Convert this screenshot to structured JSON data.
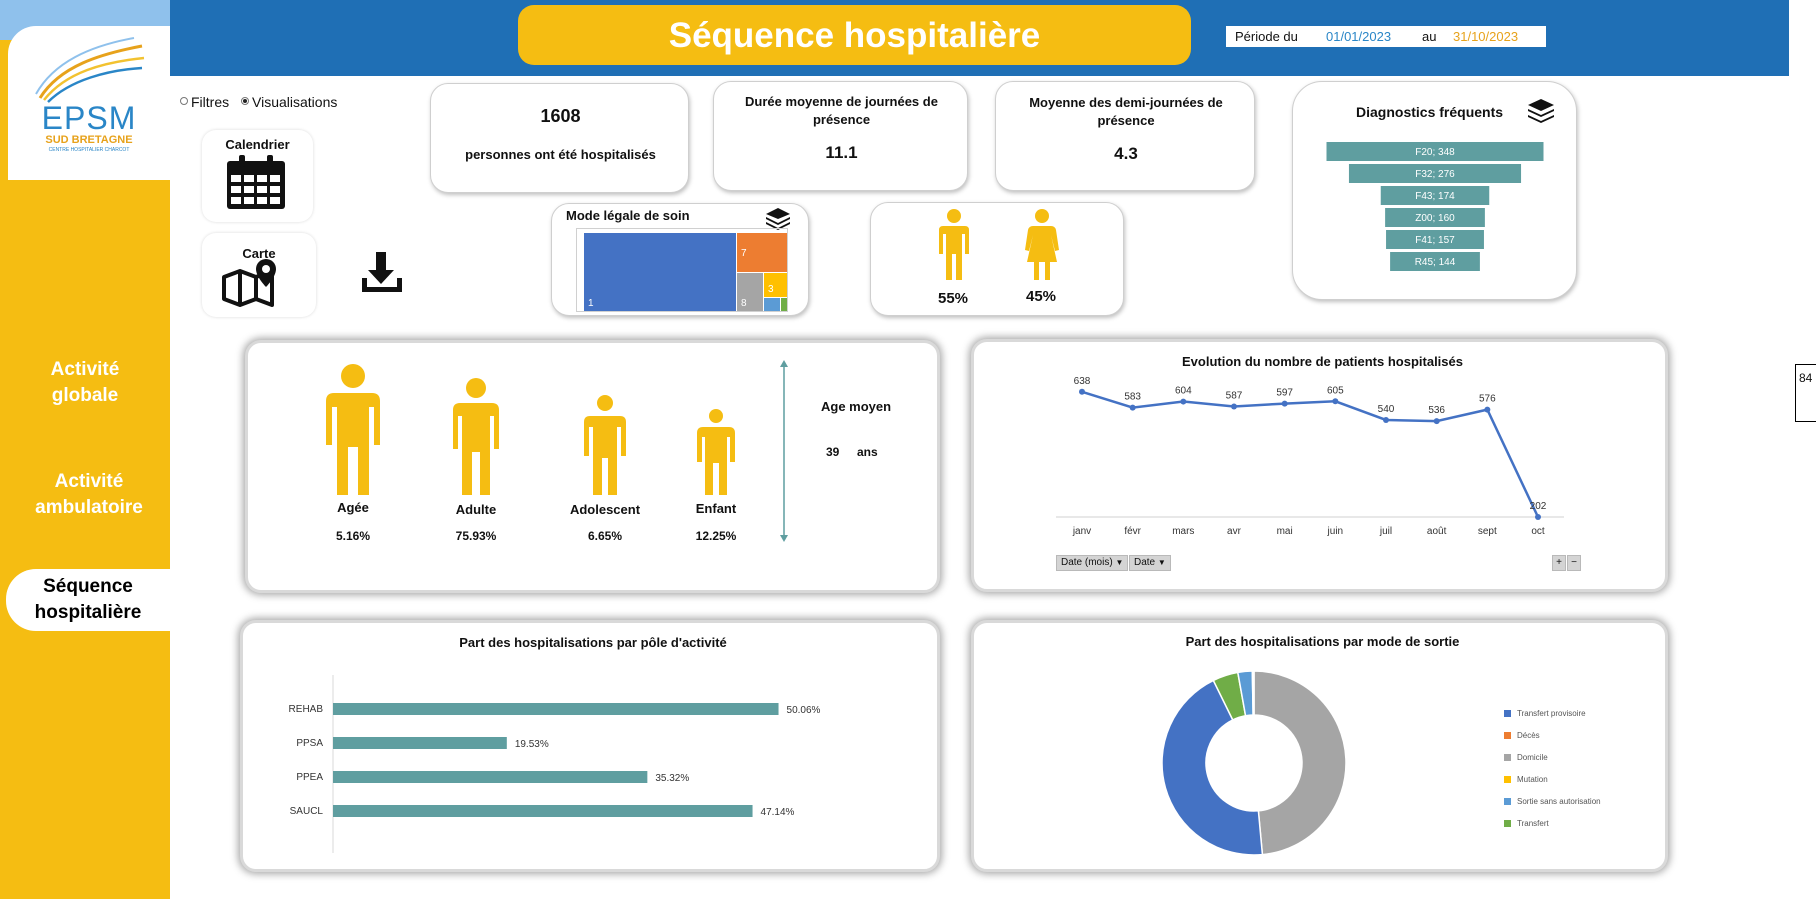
{
  "header": {
    "title": "Séquence hospitalière",
    "period_label": "Période du",
    "period_start": "01/01/2023",
    "period_sep": "au",
    "period_end": "31/10/2023"
  },
  "logo": {
    "name": "EPSM",
    "sub": "SUD BRETAGNE",
    "sub2": "CENTRE HOSPITALIER CHARCOT"
  },
  "sidebar": {
    "items": [
      {
        "line1": "Activité",
        "line2": "globale"
      },
      {
        "line1": "Activité",
        "line2": "ambulatoire"
      },
      {
        "line1": "Séquence",
        "line2": "hospitalière"
      }
    ]
  },
  "view_toggle": {
    "filters": "Filtres",
    "visualisations": "Visualisations",
    "selected": "visualisations"
  },
  "tiles": {
    "calendar": "Calendrier",
    "map": "Carte"
  },
  "right_edge_text": "84",
  "kpis": {
    "patients_value": "1608",
    "patients_label": "personnes ont été hospitalisés",
    "avg_days_label": "Durée moyenne de journées de présence",
    "avg_days_value": "11.1",
    "avg_half_days_label": "Moyenne des demi-journées de présence",
    "avg_half_days_value": "4.3"
  },
  "gender": {
    "male_pct": "55%",
    "female_pct": "45%"
  },
  "mode_legal": {
    "title": "Mode légale de soin",
    "chart_data": {
      "type": "treemap",
      "items": [
        {
          "label": "1",
          "color": "#4472c4"
        },
        {
          "label": "7",
          "color": "#ed7d31"
        },
        {
          "label": "8",
          "color": "#a5a5a5"
        },
        {
          "label": "3",
          "color": "#ffc000"
        },
        {
          "label": "",
          "color": "#5b9bd5"
        },
        {
          "label": "",
          "color": "#70ad47"
        }
      ]
    }
  },
  "diagnostics": {
    "title": "Diagnostics fréquents",
    "chart_data": {
      "type": "bar",
      "categories": [
        "F20",
        "F32",
        "F43",
        "Z00",
        "F41",
        "R45"
      ],
      "values": [
        348,
        276,
        174,
        160,
        157,
        144
      ],
      "labels": [
        "F20; 348",
        "F32; 276",
        "F43; 174",
        "Z00; 160",
        "F41; 157",
        "R45; 144"
      ],
      "color": "#5f9ea0"
    }
  },
  "age": {
    "groups": [
      {
        "label": "Agée",
        "pct": "5.16%"
      },
      {
        "label": "Adulte",
        "pct": "75.93%"
      },
      {
        "label": "Adolescent",
        "pct": "6.65%"
      },
      {
        "label": "Enfant",
        "pct": "12.25%"
      }
    ],
    "avg_title": "Age moyen",
    "avg_value": "39",
    "avg_unit": "ans"
  },
  "evolution": {
    "title": "Evolution du nombre de patients hospitalisés",
    "buttons": [
      "Date (mois)",
      "Date"
    ],
    "chart_data": {
      "type": "line",
      "categories": [
        "janv",
        "févr",
        "mars",
        "avr",
        "mai",
        "juin",
        "juil",
        "août",
        "sept",
        "oct"
      ],
      "values": [
        638,
        583,
        604,
        587,
        597,
        605,
        540,
        536,
        576,
        202
      ],
      "ylim": [
        0,
        700
      ],
      "color": "#4472c4"
    }
  },
  "poles": {
    "title": "Part des hospitalisations par pôle d'activité",
    "chart_data": {
      "type": "bar",
      "orientation": "horizontal",
      "categories": [
        "REHAB",
        "PPSA",
        "PPEA",
        "SAUCL"
      ],
      "values": [
        50.06,
        19.53,
        35.32,
        47.14
      ],
      "labels": [
        "50.06%",
        "19.53%",
        "35.32%",
        "47.14%"
      ],
      "xlim": [
        0,
        60
      ],
      "color": "#5f9ea0"
    }
  },
  "sortie": {
    "title": "Part des hospitalisations par mode de sortie",
    "chart_data": {
      "type": "pie",
      "donut": true,
      "categories": [
        "Transfert provisoire",
        "Décès",
        "Domicile",
        "Mutation",
        "Sortie sans autorisation",
        "Transfert"
      ],
      "values": [
        45.5,
        0.2,
        50.0,
        0.1,
        2.6,
        4.6
      ],
      "colors": [
        "#4472c4",
        "#ed7d31",
        "#a5a5a5",
        "#ffc000",
        "#5b9bd5",
        "#70ad47"
      ]
    }
  }
}
